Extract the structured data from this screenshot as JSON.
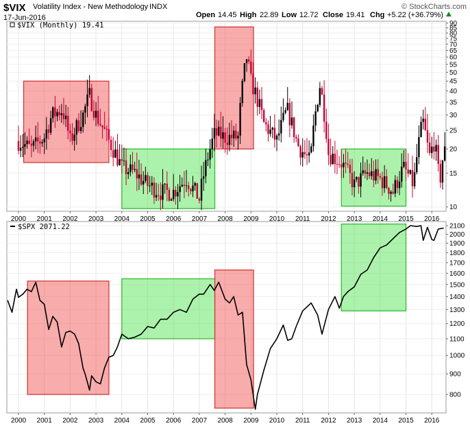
{
  "header": {
    "symbol": "$VIX",
    "name": "Volatility Index - New Methodology",
    "exchange": "INDX",
    "date": "17-Jun-2016",
    "brand": "© StockCharts.com",
    "open_label": "Open",
    "open": "14.45",
    "high_label": "High",
    "high": "22.89",
    "low_label": "Low",
    "low": "12.72",
    "close_label": "Close",
    "close": "19.41",
    "chg_label": "Chg",
    "chg": "+5.22 (+36.79%)"
  },
  "chart_data": [
    {
      "type": "candlestick",
      "legend": "$VIX (Monthly) 19.41",
      "scale": "log",
      "ylim": [
        9.5,
        92
      ],
      "xlim": [
        1999.55,
        2016.55
      ],
      "x_ticks": [
        "2000",
        "2001",
        "2002",
        "2003",
        "2004",
        "2005",
        "2006",
        "2007",
        "2008",
        "2009",
        "2010",
        "2011",
        "2012",
        "2013",
        "2014",
        "2015",
        "2016"
      ],
      "y_ticks": [
        10,
        15,
        20,
        25,
        30,
        35,
        40,
        45,
        50,
        55,
        60,
        65,
        70,
        75,
        80,
        85,
        90
      ],
      "colors": {
        "up": "#000000",
        "down": "#cc0033"
      },
      "anchor_closes": [
        [
          2000.0,
          22
        ],
        [
          2000.5,
          20
        ],
        [
          2001.0,
          23
        ],
        [
          2001.3,
          30
        ],
        [
          2001.7,
          32
        ],
        [
          2002.0,
          22
        ],
        [
          2002.5,
          30
        ],
        [
          2002.75,
          38
        ],
        [
          2003.0,
          30
        ],
        [
          2003.5,
          22
        ],
        [
          2004.0,
          16
        ],
        [
          2004.5,
          15
        ],
        [
          2005.0,
          13
        ],
        [
          2005.5,
          12
        ],
        [
          2006.0,
          12
        ],
        [
          2006.5,
          14
        ],
        [
          2007.0,
          11
        ],
        [
          2007.6,
          24
        ],
        [
          2008.0,
          23
        ],
        [
          2008.5,
          23
        ],
        [
          2008.83,
          60
        ],
        [
          2009.0,
          45
        ],
        [
          2009.5,
          27
        ],
        [
          2010.0,
          22
        ],
        [
          2010.4,
          32
        ],
        [
          2010.8,
          21
        ],
        [
          2011.3,
          17
        ],
        [
          2011.67,
          43
        ],
        [
          2012.0,
          19
        ],
        [
          2012.5,
          17
        ],
        [
          2013.0,
          13
        ],
        [
          2013.5,
          15
        ],
        [
          2014.0,
          14
        ],
        [
          2014.5,
          12
        ],
        [
          2014.9,
          16
        ],
        [
          2015.3,
          13
        ],
        [
          2015.65,
          28
        ],
        [
          2015.9,
          18
        ],
        [
          2016.1,
          22
        ],
        [
          2016.3,
          13
        ],
        [
          2016.46,
          19.41
        ]
      ],
      "highlights": [
        {
          "x": [
            2000.2,
            2003.5
          ],
          "y": [
            17,
            45
          ],
          "color": "red"
        },
        {
          "x": [
            2004.0,
            2007.6
          ],
          "y": [
            9.8,
            20
          ],
          "color": "green"
        },
        {
          "x": [
            2007.6,
            2009.1
          ],
          "y": [
            20,
            86
          ],
          "color": "red"
        },
        {
          "x": [
            2012.5,
            2015.0
          ],
          "y": [
            10.1,
            20
          ],
          "color": "green"
        }
      ]
    },
    {
      "type": "line",
      "legend": "$SPX 2071.22",
      "scale": "log",
      "ylim": [
        720,
        2150
      ],
      "xlim": [
        1999.55,
        2016.55
      ],
      "x_ticks": [
        "2000",
        "2001",
        "2002",
        "2003",
        "2004",
        "2005",
        "2006",
        "2007",
        "2008",
        "2009",
        "2010",
        "2011",
        "2012",
        "2013",
        "2014",
        "2015",
        "2016"
      ],
      "y_ticks": [
        800,
        900,
        1000,
        1100,
        1200,
        1300,
        1400,
        1500,
        1600,
        1700,
        1800,
        1900,
        2000,
        2100
      ],
      "series": [
        {
          "x": [
            1999.58,
            1999.75,
            1999.92,
            2000.0,
            2000.17,
            2000.33,
            2000.5,
            2000.67,
            2000.83,
            2001.0,
            2001.17,
            2001.33,
            2001.5,
            2001.67,
            2001.83,
            2002.0,
            2002.17,
            2002.33,
            2002.5,
            2002.58,
            2002.75,
            2002.83,
            2003.0,
            2003.17,
            2003.33,
            2003.5,
            2003.67,
            2003.83,
            2004.0,
            2004.25,
            2004.5,
            2004.75,
            2005.0,
            2005.25,
            2005.5,
            2005.75,
            2006.0,
            2006.25,
            2006.5,
            2006.75,
            2007.0,
            2007.17,
            2007.42,
            2007.58,
            2007.75,
            2008.0,
            2008.17,
            2008.33,
            2008.5,
            2008.67,
            2008.83,
            2009.0,
            2009.17,
            2009.25,
            2009.5,
            2009.75,
            2010.0,
            2010.25,
            2010.42,
            2010.58,
            2010.75,
            2011.0,
            2011.33,
            2011.58,
            2011.75,
            2012.0,
            2012.25,
            2012.42,
            2012.58,
            2012.75,
            2013.0,
            2013.25,
            2013.5,
            2013.75,
            2014.0,
            2014.25,
            2014.5,
            2014.75,
            2015.0,
            2015.17,
            2015.42,
            2015.58,
            2015.67,
            2015.83,
            2016.0,
            2016.08,
            2016.25,
            2016.46
          ],
          "values": [
            1370,
            1280,
            1460,
            1394,
            1420,
            1460,
            1440,
            1520,
            1370,
            1340,
            1160,
            1250,
            1210,
            1050,
            1140,
            1150,
            1130,
            1070,
            930,
            900,
            820,
            890,
            860,
            850,
            930,
            990,
            1000,
            1050,
            1130,
            1100,
            1110,
            1130,
            1180,
            1170,
            1230,
            1230,
            1280,
            1300,
            1280,
            1380,
            1420,
            1420,
            1500,
            1450,
            1520,
            1380,
            1350,
            1400,
            1260,
            1280,
            950,
            870,
            735,
            800,
            920,
            1040,
            1100,
            1190,
            1090,
            1100,
            1180,
            1290,
            1350,
            1260,
            1130,
            1300,
            1400,
            1310,
            1400,
            1440,
            1480,
            1590,
            1630,
            1750,
            1850,
            1880,
            1950,
            2020,
            2060,
            2100,
            2090,
            2100,
            1930,
            2080,
            1940,
            1930,
            2060,
            2071
          ]
        }
      ],
      "colors": {
        "line": "#000000"
      },
      "highlights": [
        {
          "x": [
            2000.35,
            2003.5
          ],
          "y": [
            800,
            1530
          ],
          "color": "red"
        },
        {
          "x": [
            2004.0,
            2007.6
          ],
          "y": [
            1100,
            1550
          ],
          "color": "green"
        },
        {
          "x": [
            2007.6,
            2009.1
          ],
          "y": [
            740,
            1630
          ],
          "color": "red"
        },
        {
          "x": [
            2012.5,
            2015.0
          ],
          "y": [
            1290,
            2120
          ],
          "color": "green"
        }
      ]
    }
  ]
}
